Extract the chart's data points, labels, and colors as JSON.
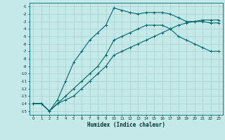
{
  "xlabel": "Humidex (Indice chaleur)",
  "bg_color": "#c5e8e8",
  "grid_color": "#a8d0d0",
  "line_color": "#006868",
  "xlim": [
    -0.5,
    23.5
  ],
  "ylim": [
    -15.5,
    -0.5
  ],
  "xticks": [
    0,
    1,
    2,
    3,
    4,
    5,
    6,
    7,
    8,
    9,
    10,
    11,
    12,
    13,
    14,
    15,
    16,
    17,
    18,
    19,
    20,
    21,
    22,
    23
  ],
  "yticks": [
    -1,
    -2,
    -3,
    -4,
    -5,
    -6,
    -7,
    -8,
    -9,
    -10,
    -11,
    -12,
    -13,
    -14,
    -15
  ],
  "curve1_x": [
    0,
    1,
    2,
    3,
    4,
    5,
    6,
    7,
    8,
    9,
    10,
    11,
    12,
    13,
    14,
    15,
    16,
    17,
    18,
    19,
    20,
    21,
    22,
    23
  ],
  "curve1_y": [
    -14,
    -14,
    -15,
    -13.5,
    -11,
    -8.5,
    -7,
    -5.5,
    -4.5,
    -3.5,
    -1.2,
    -1.5,
    -1.8,
    -2.0,
    -1.8,
    -1.8,
    -1.8,
    -2.0,
    -2.5,
    -3.0,
    -3.0,
    -3.0,
    -3.2,
    -3.2
  ],
  "curve2_x": [
    0,
    1,
    2,
    3,
    4,
    5,
    6,
    7,
    8,
    9,
    10,
    11,
    12,
    13,
    14,
    15,
    16,
    17,
    18,
    19,
    20,
    21,
    22,
    23
  ],
  "curve2_y": [
    -14,
    -14,
    -15,
    -14,
    -13,
    -12,
    -11,
    -10,
    -9,
    -7.5,
    -5.5,
    -5.0,
    -4.5,
    -4.0,
    -3.5,
    -3.5,
    -3.5,
    -4.0,
    -5.0,
    -5.5,
    -6.0,
    -6.5,
    -7.0,
    -7.0
  ],
  "curve3_x": [
    0,
    1,
    2,
    3,
    4,
    5,
    6,
    7,
    8,
    9,
    10,
    11,
    12,
    13,
    14,
    15,
    16,
    17,
    18,
    19,
    20,
    21,
    22,
    23
  ],
  "curve3_y": [
    -14,
    -14,
    -15,
    -14,
    -13.5,
    -13,
    -12,
    -11,
    -10,
    -9,
    -7.5,
    -7.0,
    -6.5,
    -6.0,
    -5.5,
    -5.0,
    -4.5,
    -4.0,
    -3.5,
    -3.2,
    -3.0,
    -2.8,
    -2.8,
    -2.8
  ],
  "marker_only_curve1": [
    0,
    1,
    2,
    3,
    4,
    5,
    6,
    7,
    8,
    9,
    10,
    11,
    12,
    13,
    14,
    15,
    16,
    17,
    18,
    19,
    20,
    21,
    22,
    23
  ],
  "lw": 0.8,
  "markersize": 2.0
}
